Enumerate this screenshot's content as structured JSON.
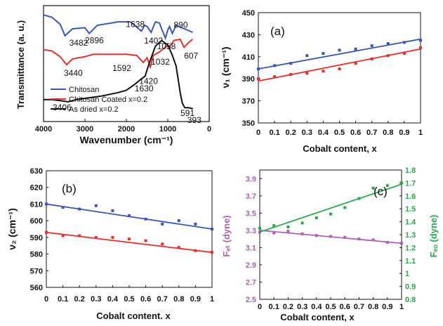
{
  "chart_data": [
    {
      "id": "ftir",
      "type": "line",
      "xlabel": "Wavenumber (cm⁻¹)",
      "ylabel": "Transmittance (a. u.)",
      "xlim": [
        4000,
        0
      ],
      "x_ticks": [
        "4000",
        "3000",
        "2000",
        "1000",
        "0"
      ],
      "colors": {
        "chitosan": "#3a56b0",
        "coated": "#e53030",
        "dried": "#111111"
      },
      "series": [
        {
          "name": "Chitosan",
          "color": "#3a56b0",
          "x": [
            4000,
            3800,
            3600,
            3482,
            3300,
            3000,
            2896,
            2700,
            2200,
            1900,
            1638,
            1560,
            1500,
            1402,
            1300,
            1200,
            1150,
            1058,
            1000,
            960,
            890,
            800,
            600,
            400
          ],
          "y": [
            9.2,
            9.0,
            8.4,
            7.4,
            8.0,
            8.1,
            7.6,
            8.3,
            8.6,
            8.6,
            7.8,
            8.3,
            8.2,
            7.7,
            8.6,
            8.5,
            8.0,
            7.2,
            7.9,
            8.2,
            7.6,
            8.3,
            8.0,
            7.7
          ]
        },
        {
          "name": "Chitosan Coated x=0.2",
          "color": "#e53030",
          "x": [
            4000,
            3800,
            3600,
            3440,
            3300,
            3000,
            2800,
            2400,
            2000,
            1750,
            1592,
            1500,
            1420,
            1350,
            1200,
            1100,
            1032,
            950,
            850,
            700,
            607,
            500,
            400
          ],
          "y": [
            6.2,
            6.1,
            5.6,
            4.9,
            5.4,
            5.6,
            5.8,
            5.8,
            5.8,
            5.7,
            5.1,
            5.5,
            4.7,
            5.7,
            6.0,
            6.3,
            6.5,
            6.5,
            7.0,
            7.1,
            6.4,
            6.8,
            7.1
          ]
        },
        {
          "name": "As dried x=0.2",
          "color": "#111111",
          "x": [
            4000,
            3800,
            3600,
            3406,
            3200,
            3000,
            2600,
            2200,
            2000,
            1800,
            1630,
            1550,
            1450,
            1300,
            1150,
            1000,
            900,
            800,
            700,
            650,
            591,
            500,
            450,
            393
          ],
          "y": [
            1.9,
            1.9,
            1.8,
            1.7,
            1.9,
            2.0,
            2.2,
            2.5,
            2.7,
            3.2,
            3.7,
            3.9,
            5.0,
            6.5,
            7.0,
            6.6,
            5.8,
            4.8,
            2.5,
            1.6,
            1.2,
            1.2,
            1.15,
            1.1
          ]
        }
      ],
      "annotations": [
        {
          "text": "3482",
          "x": 3482,
          "y": 7.4
        },
        {
          "text": "2896",
          "x": 2896,
          "y": 7.6
        },
        {
          "text": "1638",
          "x": 1638,
          "y": 7.8
        },
        {
          "text": "1402",
          "x": 1402,
          "y": 7.7
        },
        {
          "text": "1058",
          "x": 1058,
          "y": 7.2
        },
        {
          "text": "890",
          "x": 890,
          "y": 7.6
        },
        {
          "text": "3440",
          "x": 3440,
          "y": 4.9
        },
        {
          "text": "1592",
          "x": 1592,
          "y": 5.1
        },
        {
          "text": "1420",
          "x": 1420,
          "y": 4.7
        },
        {
          "text": "1032",
          "x": 1032,
          "y": 6.5
        },
        {
          "text": "607",
          "x": 607,
          "y": 6.4
        },
        {
          "text": "1630",
          "x": 1630,
          "y": 3.7
        },
        {
          "text": "3406",
          "x": 3406,
          "y": 1.7
        },
        {
          "text": "591",
          "x": 591,
          "y": 1.2
        },
        {
          "text": "393",
          "x": 393,
          "y": 1.1
        }
      ],
      "legend": {
        "placement": "bottom-left",
        "entries": [
          "Chitosan",
          "Chitosan Coated x=0.2",
          "As dried x=0.2"
        ]
      }
    },
    {
      "id": "a",
      "type": "scatter",
      "panel_label": "(a)",
      "xlabel": "Cobalt content, x",
      "ylabel": "ν₁ (cm⁻¹)",
      "xlim": [
        0,
        1
      ],
      "ylim": [
        350,
        450
      ],
      "x_ticks": [
        0,
        0.1,
        0.2,
        0.3,
        0.4,
        0.5,
        0.6,
        0.7,
        0.8,
        0.9,
        1
      ],
      "x_tick_labels": [
        "0",
        "0.1",
        "0.2",
        "0.3",
        "0.4",
        "0.5",
        "0.6",
        "0.7",
        "0.8",
        "0.9",
        "1"
      ],
      "y_ticks": [
        350,
        370,
        390,
        410,
        430,
        450
      ],
      "y_tick_labels": [
        "350",
        "370",
        "390",
        "410",
        "430",
        "450"
      ],
      "series": [
        {
          "color": "#3a56b0",
          "x": [
            0,
            0.1,
            0.2,
            0.3,
            0.4,
            0.5,
            0.6,
            0.7,
            0.8,
            0.9,
            1
          ],
          "y": [
            399,
            402,
            404,
            411,
            413,
            416,
            417,
            420,
            422,
            423,
            425
          ],
          "fit": [
            399,
            426
          ]
        },
        {
          "color": "#e53030",
          "x": [
            0,
            0.1,
            0.2,
            0.3,
            0.4,
            0.5,
            0.6,
            0.7,
            0.8,
            0.9,
            1
          ],
          "y": [
            390,
            392,
            394,
            395,
            397,
            399,
            404,
            408,
            411,
            413,
            418
          ],
          "fit": [
            388,
            417
          ]
        }
      ]
    },
    {
      "id": "b",
      "type": "scatter",
      "panel_label": "(b)",
      "xlabel": "Cobalt content. x",
      "ylabel": "ν₂ (cm⁻¹)",
      "xlim": [
        0,
        1
      ],
      "ylim": [
        560,
        630
      ],
      "x_ticks": [
        0,
        0.1,
        0.2,
        0.3,
        0.4,
        0.5,
        0.6,
        0.7,
        0.8,
        0.9,
        1
      ],
      "x_tick_labels": [
        "0",
        "0.1",
        "0.2",
        "0.3",
        "0.4",
        "0.5",
        "0.6",
        "0.7",
        "0.8",
        "0.9",
        "1"
      ],
      "y_ticks": [
        560,
        570,
        580,
        590,
        600,
        610,
        620,
        630
      ],
      "y_tick_labels": [
        "560",
        "570",
        "580",
        "590",
        "600",
        "610",
        "620",
        "630"
      ],
      "series": [
        {
          "color": "#3a56b0",
          "x": [
            0,
            0.1,
            0.2,
            0.3,
            0.4,
            0.5,
            0.6,
            0.7,
            0.8,
            0.9,
            1
          ],
          "y": [
            610,
            608,
            607,
            609,
            606,
            603,
            601,
            598,
            600,
            598,
            595
          ],
          "fit": [
            610,
            595
          ]
        },
        {
          "color": "#e53030",
          "x": [
            0,
            0.1,
            0.2,
            0.3,
            0.4,
            0.5,
            0.6,
            0.7,
            0.8,
            0.9,
            1
          ],
          "y": [
            593,
            591,
            591,
            590,
            590,
            589,
            588,
            586,
            584,
            582,
            581
          ],
          "fit": [
            593,
            581
          ]
        }
      ]
    },
    {
      "id": "c",
      "type": "scatter",
      "panel_label": "(c)",
      "xlabel": "Cobalt content, x",
      "ylabel_left": "Fₑₜ (dyne)",
      "ylabel_right": "Fₑₒ (dyne)",
      "xlim": [
        0,
        1
      ],
      "ylim_left": [
        2.5,
        4.0
      ],
      "ylim_right": [
        0.8,
        1.8
      ],
      "x_ticks": [
        0,
        0.1,
        0.2,
        0.3,
        0.4,
        0.5,
        0.6,
        0.7,
        0.8,
        0.9,
        1
      ],
      "x_tick_labels": [
        "0",
        "0.1",
        "0.2",
        "0.3",
        "0.4",
        "0.5",
        "0.6",
        "0.7",
        "0.8",
        "0.9",
        "1"
      ],
      "y_ticks_left": [
        2.5,
        2.7,
        2.9,
        3.1,
        3.3,
        3.5,
        3.7,
        3.9
      ],
      "y_tick_labels_left": [
        "2.5",
        "2.7",
        "2.9",
        "3.1",
        "3.3",
        "3.5",
        "3.7",
        "3.9"
      ],
      "y_ticks_right": [
        0.8,
        0.9,
        1.0,
        1.1,
        1.2,
        1.3,
        1.4,
        1.5,
        1.6,
        1.7,
        1.8
      ],
      "y_tick_labels_right": [
        "0.8",
        "0.9",
        "1",
        "1.1",
        "1.2",
        "1.3",
        "1.4",
        "1.5",
        "1.6",
        "1.7",
        "1.8"
      ],
      "series": [
        {
          "axis": "left",
          "color": "#b060b0",
          "x": [
            0,
            0.1,
            0.2,
            0.3,
            0.4,
            0.5,
            0.6,
            0.7,
            0.8,
            0.9,
            1
          ],
          "y": [
            3.28,
            3.27,
            3.29,
            3.26,
            3.24,
            3.23,
            3.22,
            3.2,
            3.19,
            3.16,
            3.15
          ],
          "fit": [
            3.3,
            3.15
          ]
        },
        {
          "axis": "right",
          "color": "#2aa84a",
          "x": [
            0,
            0.1,
            0.2,
            0.3,
            0.4,
            0.5,
            0.6,
            0.7,
            0.8,
            0.9,
            1
          ],
          "y": [
            1.35,
            1.37,
            1.36,
            1.39,
            1.43,
            1.46,
            1.51,
            1.58,
            1.66,
            1.68,
            1.7
          ],
          "fit": [
            1.32,
            1.69
          ]
        }
      ]
    }
  ]
}
